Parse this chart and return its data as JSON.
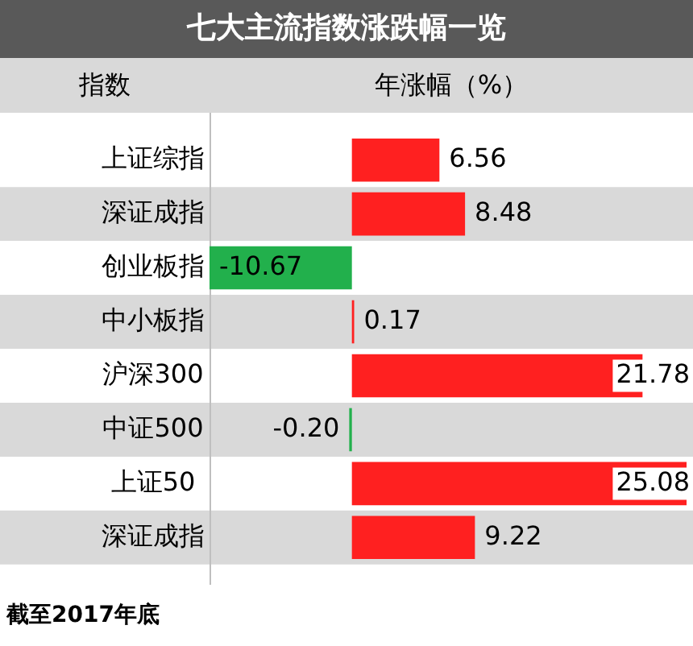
{
  "chart_data": {
    "type": "bar",
    "orientation": "horizontal",
    "title": "七大主流指数涨跌幅一览",
    "ylabel": "指数",
    "xlabel": "年涨幅（%）",
    "categories": [
      "上证综指",
      "深证成指",
      "创业板指",
      "中小板指",
      "沪深300",
      "中证500",
      "上证50",
      "深证成指"
    ],
    "values": [
      6.56,
      8.48,
      -10.67,
      0.17,
      21.78,
      -0.2,
      25.08,
      9.22
    ],
    "colors": [
      "#ff2020",
      "#ff2020",
      "#22b04c",
      "#ff2020",
      "#ff2020",
      "#22b04c",
      "#ff2020",
      "#ff2020"
    ],
    "value_labels": [
      "6.56",
      "8.48",
      "-10.67",
      "0.17",
      "21.78",
      "-0.20",
      "25.08",
      "9.22"
    ],
    "tick_labels": "y",
    "grid": false,
    "legend": false,
    "annotations": [
      "截至2017年底"
    ]
  }
}
